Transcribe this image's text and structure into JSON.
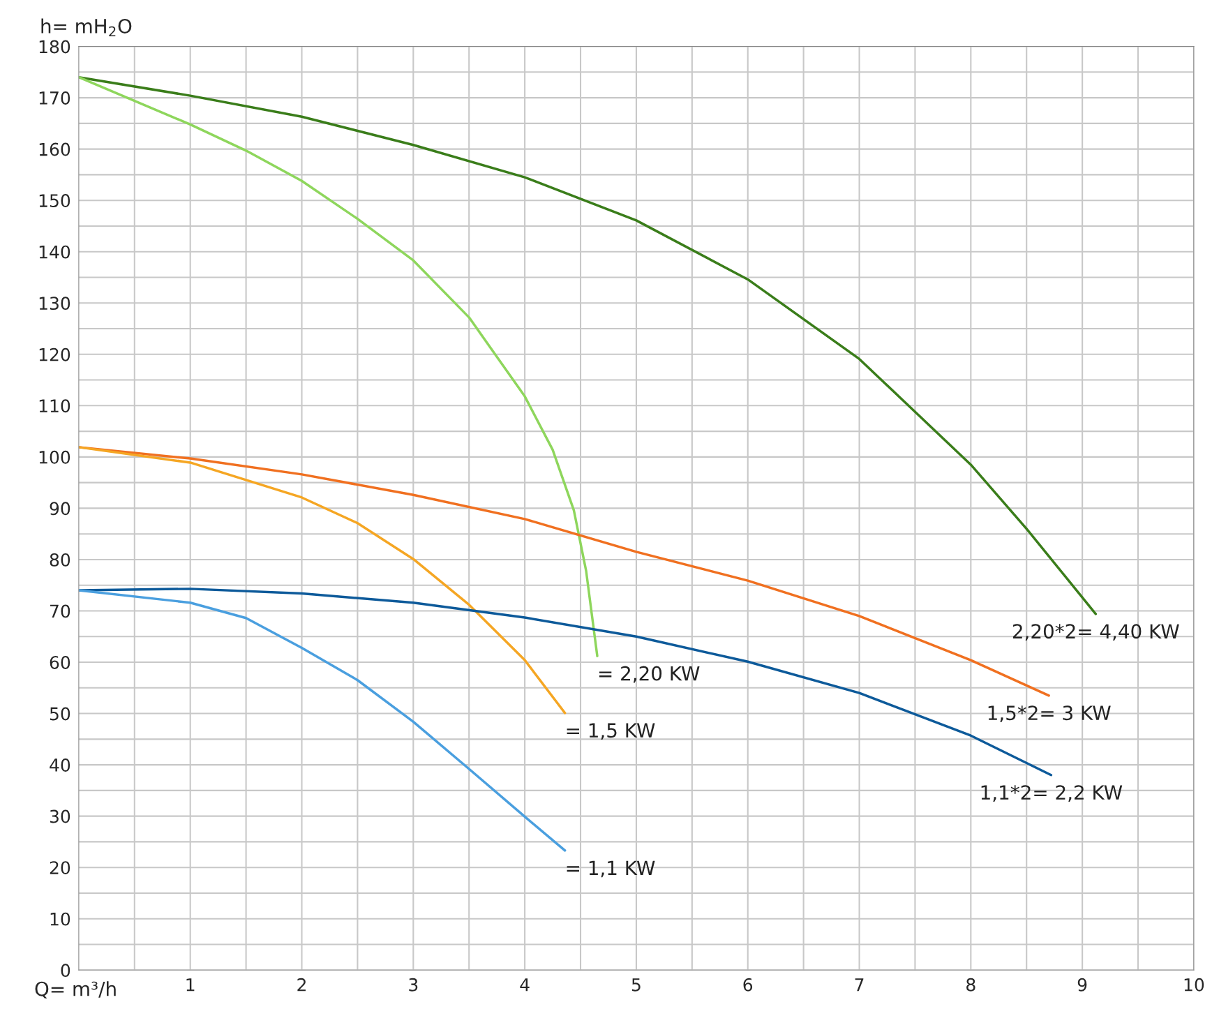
{
  "chart_data": {
    "type": "line",
    "xlabel": "Q= m³/h",
    "ylabel": "h= mH$_{2}$O",
    "xlim": [
      0,
      10
    ],
    "xticks": [
      1,
      2,
      3,
      4,
      5,
      6,
      7,
      8,
      9,
      10
    ],
    "ylim": [
      0,
      180
    ],
    "yticks": [
      0,
      10,
      20,
      30,
      40,
      50,
      60,
      70,
      80,
      90,
      100,
      110,
      120,
      130,
      140,
      150,
      160,
      170,
      180
    ],
    "grid": true,
    "marker": "none",
    "line_style": "solid",
    "legend": false,
    "series": [
      {
        "name": "2,20*2= 4,40 KW",
        "color": "#3a7d1a",
        "x": [
          0,
          1,
          2,
          3,
          4,
          5,
          6,
          7,
          8,
          8.5,
          9.12
        ],
        "values": [
          174,
          170.4,
          166.3,
          160.8,
          154.5,
          146.1,
          134.6,
          119.1,
          98.5,
          86,
          69.4
        ]
      },
      {
        "name": "= 2,20 KW",
        "color": "#8ed65c",
        "x": [
          0,
          1,
          1.5,
          2,
          2.5,
          3,
          3.5,
          4,
          4.25,
          4.44,
          4.55,
          4.65
        ],
        "values": [
          174,
          164.8,
          159.7,
          153.8,
          146.4,
          138.3,
          127.2,
          111.8,
          101.4,
          89.6,
          77.8,
          61.2
        ]
      },
      {
        "name": "1,5*2= 3 KW",
        "color": "#f07020",
        "x": [
          0,
          1,
          2,
          3,
          4,
          5,
          6,
          7,
          8,
          8.7
        ],
        "values": [
          101.9,
          99.7,
          96.6,
          92.6,
          87.9,
          81.5,
          75.9,
          69,
          60.4,
          53.5
        ]
      },
      {
        "name": "= 1,5 KW",
        "color": "#f5a623",
        "x": [
          0,
          1,
          2,
          2.5,
          3,
          3.5,
          4,
          4.36
        ],
        "values": [
          101.9,
          98.9,
          92.1,
          87.1,
          80.1,
          71.2,
          60.4,
          50.1
        ]
      },
      {
        "name": "1,1*2= 2,2 KW",
        "color": "#0d5a9a",
        "x": [
          0,
          1,
          2,
          3,
          4,
          5,
          6,
          7,
          8,
          8.72
        ],
        "values": [
          74,
          74.3,
          73.4,
          71.6,
          68.7,
          65,
          60.1,
          54,
          45.7,
          38
        ]
      },
      {
        "name": "= 1,1 KW",
        "color": "#4a9fdf",
        "x": [
          0,
          1,
          1.5,
          2,
          2.5,
          3,
          3.5,
          4,
          4.36
        ],
        "values": [
          74,
          71.6,
          68.6,
          62.8,
          56.5,
          48.4,
          39.2,
          29.9,
          23.3
        ]
      }
    ]
  }
}
